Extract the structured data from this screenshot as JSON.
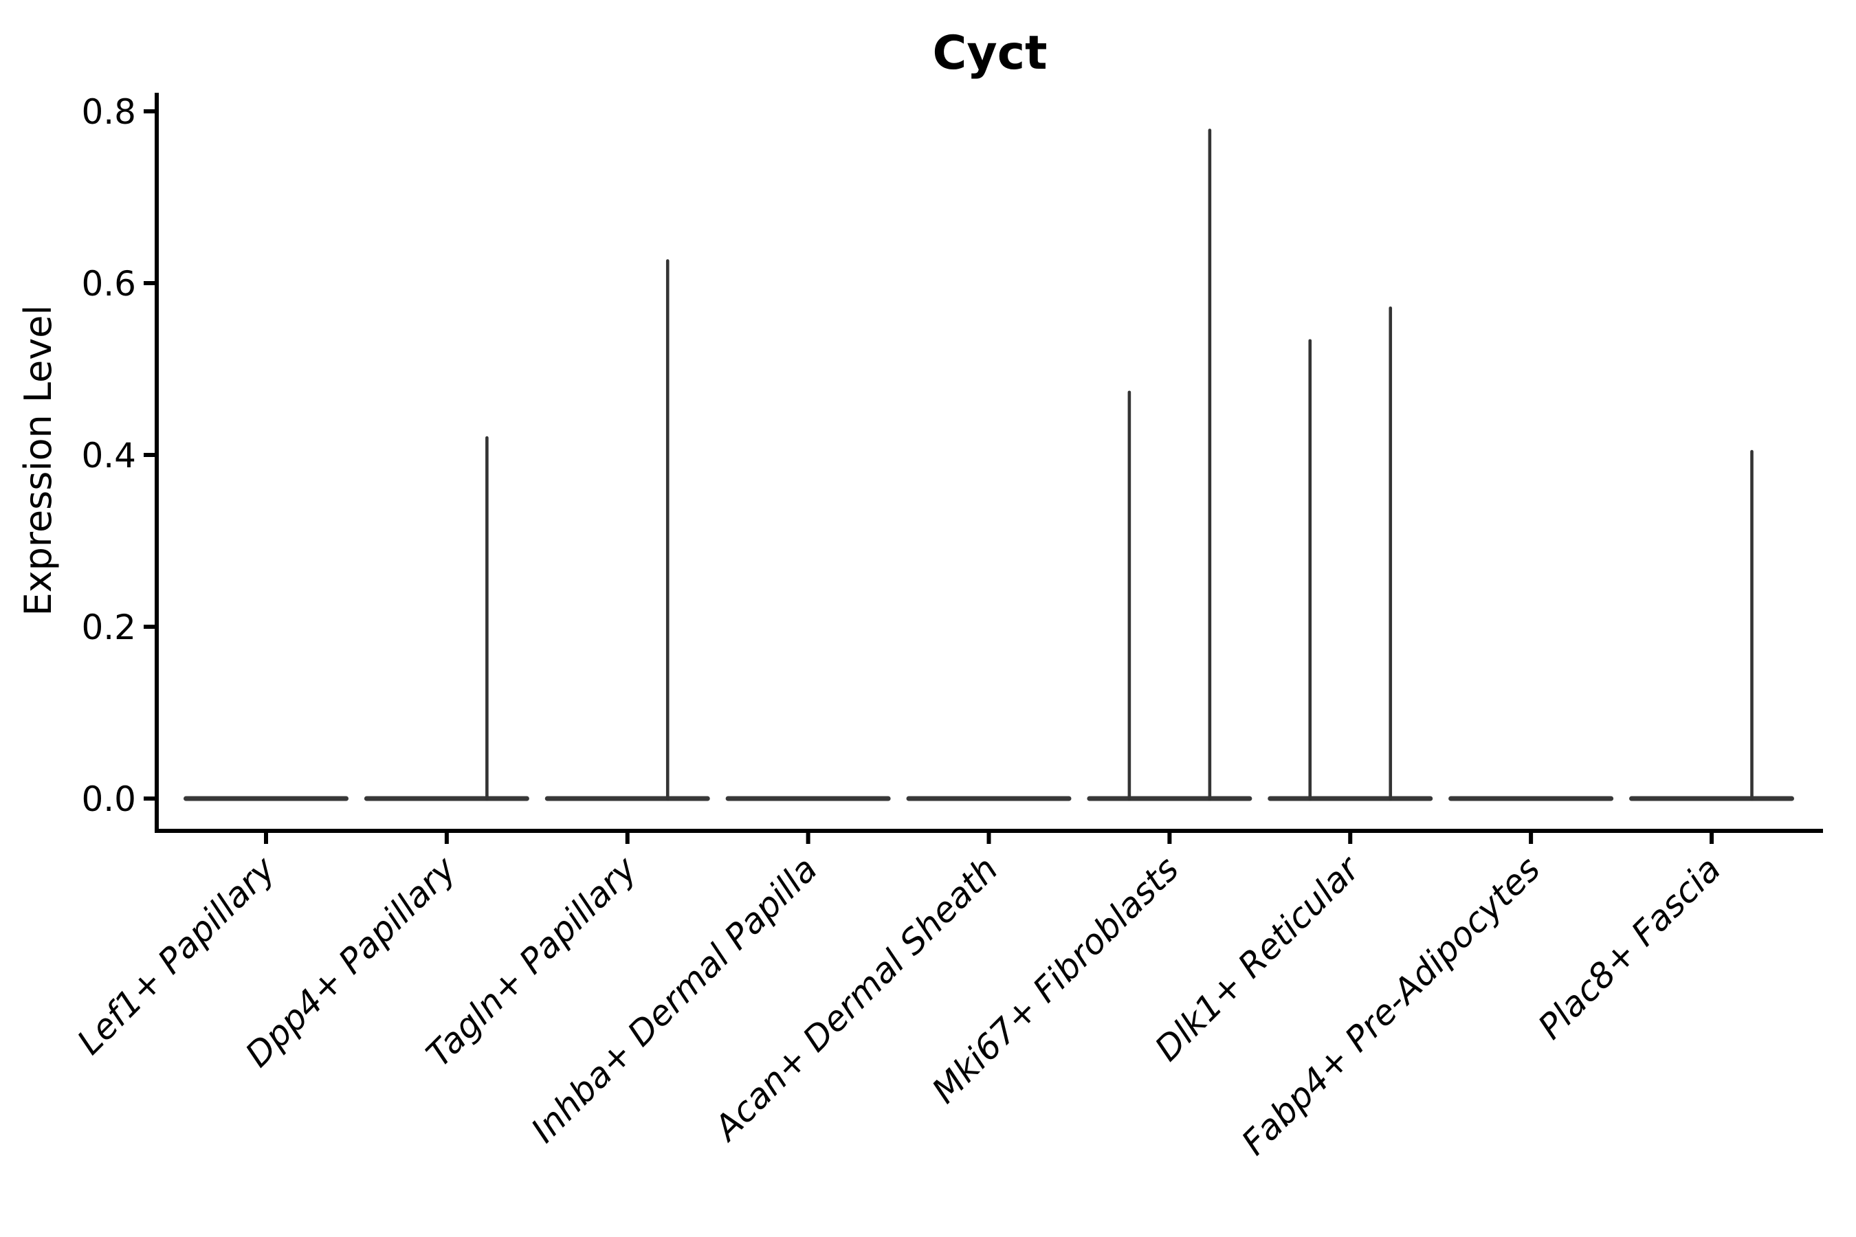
{
  "title": "Cyct",
  "ylabel": "Expression Level",
  "colors": {
    "violin": "#383838",
    "spike": "#343434",
    "axis": "#000000",
    "text": "#000000",
    "background": "#ffffff"
  },
  "chart_data": {
    "type": "violin",
    "title": "Cyct",
    "xlabel": "",
    "ylabel": "Expression Level",
    "ylim": [
      -0.038,
      0.82
    ],
    "yticks": [
      0.0,
      0.2,
      0.4,
      0.6,
      0.8
    ],
    "ytick_labels": [
      "0.0",
      "0.2",
      "0.4",
      "0.6",
      "0.8"
    ],
    "grid": false,
    "legend": "none",
    "description": "Violin plot of gene expression; each violin is flattened at 0 (density concentrated at zero) with thin vertical density spikes reaching the listed maximum expression values; some categories contain two sub-violins (left/right) each with its own spike.",
    "categories": [
      {
        "label": "Lef1+ Papillary",
        "spikes": []
      },
      {
        "label": "Dpp4+ Papillary",
        "spikes": [
          {
            "side": "right",
            "max": 0.42
          }
        ]
      },
      {
        "label": "Tagln+ Papillary",
        "spikes": [
          {
            "side": "right",
            "max": 0.626
          }
        ]
      },
      {
        "label": "Inhba+ Dermal Papilla",
        "spikes": []
      },
      {
        "label": "Acan+ Dermal Sheath",
        "spikes": []
      },
      {
        "label": "Mki67+ Fibroblasts",
        "spikes": [
          {
            "side": "left",
            "max": 0.473
          },
          {
            "side": "right",
            "max": 0.778
          }
        ]
      },
      {
        "label": "Dlk1+ Reticular",
        "spikes": [
          {
            "side": "left",
            "max": 0.533
          },
          {
            "side": "right",
            "max": 0.571
          }
        ]
      },
      {
        "label": "Fabp4+ Pre-Adipocytes",
        "spikes": []
      },
      {
        "label": "Plac8+ Fascia",
        "spikes": [
          {
            "side": "right",
            "max": 0.404
          }
        ]
      }
    ]
  }
}
